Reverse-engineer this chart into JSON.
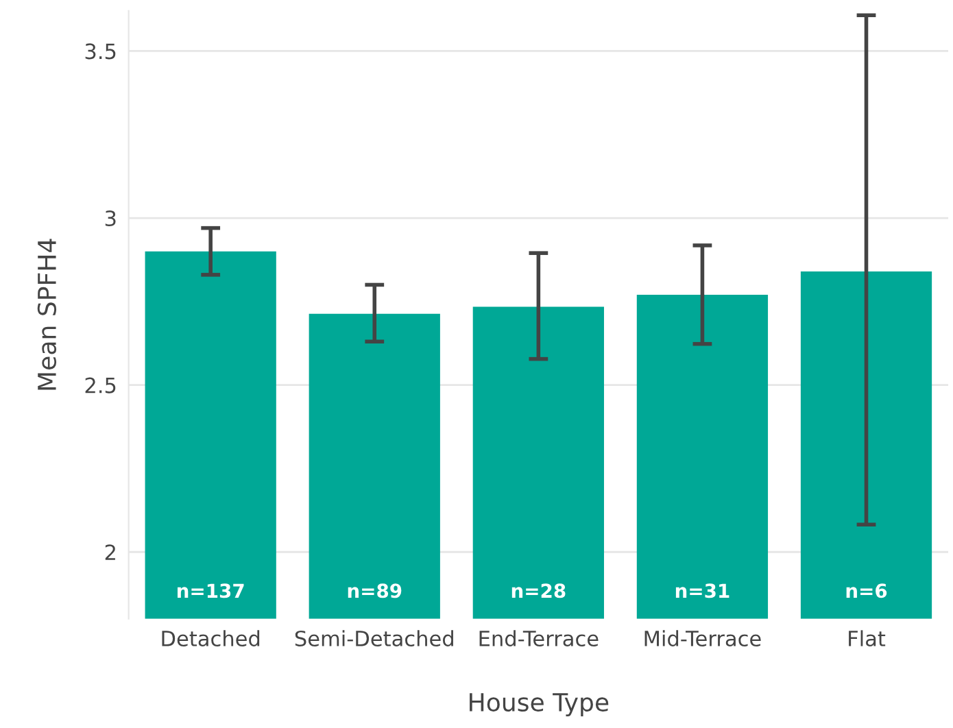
{
  "chart_data": {
    "type": "bar",
    "xlabel": "House Type",
    "ylabel": "Mean SPFH4",
    "categories": [
      "Detached",
      "Semi-Detached",
      "End-Terrace",
      "Mid-Terrace",
      "Flat"
    ],
    "values": [
      2.9,
      2.713,
      2.734,
      2.77,
      2.84
    ],
    "errors": [
      [
        2.83,
        2.97
      ],
      [
        2.63,
        2.8
      ],
      [
        2.578,
        2.895
      ],
      [
        2.623,
        2.918
      ],
      [
        2.082,
        3.607
      ]
    ],
    "color": "#00a896",
    "ylim": [
      1.8,
      3.62
    ],
    "yticks": [
      2,
      2.5,
      3,
      3.5
    ],
    "grid": "y",
    "annotations": [
      "n=137",
      "n=89",
      "n=28",
      "n=31",
      "n=6"
    ]
  }
}
